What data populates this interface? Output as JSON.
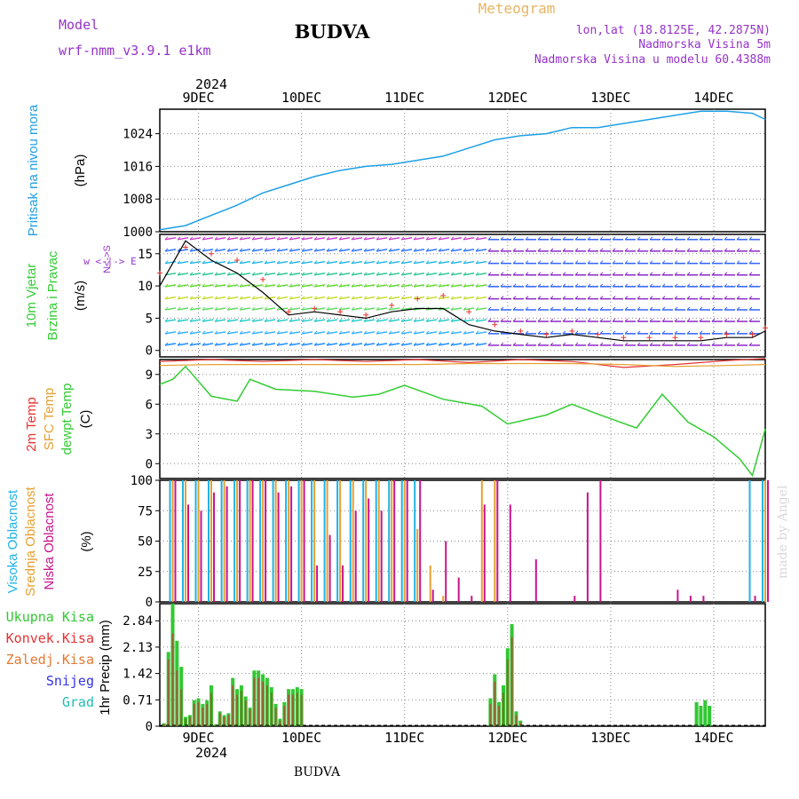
{
  "header": {
    "model_label": "Model",
    "model_name": "wrf-nmm_v3.9.1  e1km",
    "title": "BUDVA",
    "meteogram_label": "Meteogram",
    "lonlat": "lon,lat (18.8125E, 42.2875N)",
    "elevation": "Nadmorska Visina 5m",
    "model_elevation": "Nadmorska Visina u modelu 60.4388m",
    "footer_title": "BUDVA",
    "watermark": "made by Angel"
  },
  "colors": {
    "pressure": "#1ea0e6",
    "speed_line": "#000000",
    "gust_marks": "#e63232",
    "temp_2m": "#e63232",
    "temp_sfc": "#e6a030",
    "dewpoint": "#32cd32",
    "cloud_high": "#1eb4e6",
    "cloud_mid": "#e6a030",
    "cloud_low": "#c8148c",
    "precip_total": "#32c832",
    "precip_conv": "#e63232",
    "precip_frozen": "#e67832",
    "precip_snow": "#3232e6",
    "precip_graupel": "#1ebeb4",
    "wind_label": "#9632c8",
    "grid": "#888888"
  },
  "time_axis": {
    "year_label": "2024",
    "start": "2024-12-08 15:00",
    "end": "2024-12-14 12:00",
    "day_labels": [
      "9DEC",
      "10DEC",
      "11DEC",
      "12DEC",
      "13DEC",
      "14DEC"
    ],
    "day_times": [
      "2024-12-09 00:00",
      "2024-12-10 00:00",
      "2024-12-11 00:00",
      "2024-12-12 00:00",
      "2024-12-13 00:00",
      "2024-12-14 00:00"
    ]
  },
  "chart_data": [
    {
      "type": "line",
      "panel": "pressure",
      "ylabel_lines": [
        "Pritisak na nivou mora",
        "(hPa)"
      ],
      "ylim": [
        1000,
        1030
      ],
      "yticks": [
        "1000",
        "1008",
        "1016",
        "1024"
      ],
      "series": [
        {
          "name": "Pritisak na nivou mora",
          "x": [
            "2024-12-08 15:00",
            "2024-12-08 21:00",
            "2024-12-09 03:00",
            "2024-12-09 09:00",
            "2024-12-09 15:00",
            "2024-12-09 21:00",
            "2024-12-10 03:00",
            "2024-12-10 09:00",
            "2024-12-10 15:00",
            "2024-12-10 21:00",
            "2024-12-11 03:00",
            "2024-12-11 09:00",
            "2024-12-11 15:00",
            "2024-12-11 21:00",
            "2024-12-12 03:00",
            "2024-12-12 09:00",
            "2024-12-12 15:00",
            "2024-12-12 21:00",
            "2024-12-13 03:00",
            "2024-12-13 09:00",
            "2024-12-13 15:00",
            "2024-12-13 21:00",
            "2024-12-14 03:00",
            "2024-12-14 09:00",
            "2024-12-14 12:00"
          ],
          "values": [
            1000.5,
            1001.5,
            1004.0,
            1006.5,
            1009.5,
            1011.5,
            1013.5,
            1015.0,
            1016.0,
            1016.5,
            1017.5,
            1018.5,
            1020.5,
            1022.5,
            1023.5,
            1024.0,
            1025.5,
            1025.5,
            1026.5,
            1027.5,
            1028.5,
            1029.5,
            1029.5,
            1029.0,
            1027.5
          ]
        }
      ]
    },
    {
      "type": "line",
      "panel": "wind",
      "ylabel_lines": [
        "10m Vjetar",
        "Brzina i Pravac",
        "(m/s)"
      ],
      "direction_legend": "w <-|-> E",
      "direction_legend_ns": "N<->S",
      "ylim": [
        -1,
        18
      ],
      "yticks": [
        "0",
        "5",
        "10",
        "15"
      ],
      "series": [
        {
          "name": "Brzina",
          "x": [
            "2024-12-08 15:00",
            "2024-12-08 21:00",
            "2024-12-09 03:00",
            "2024-12-09 09:00",
            "2024-12-09 15:00",
            "2024-12-09 21:00",
            "2024-12-10 03:00",
            "2024-12-10 09:00",
            "2024-12-10 15:00",
            "2024-12-10 21:00",
            "2024-12-11 03:00",
            "2024-12-11 09:00",
            "2024-12-11 15:00",
            "2024-12-11 21:00",
            "2024-12-12 03:00",
            "2024-12-12 09:00",
            "2024-12-12 15:00",
            "2024-12-12 21:00",
            "2024-12-13 03:00",
            "2024-12-13 09:00",
            "2024-12-13 15:00",
            "2024-12-13 21:00",
            "2024-12-14 03:00",
            "2024-12-14 09:00",
            "2024-12-14 12:00"
          ],
          "values": [
            10,
            17,
            14,
            12,
            9,
            5.5,
            6,
            5.5,
            5,
            6,
            6.5,
            6.5,
            4,
            3,
            2.5,
            2,
            2.5,
            2,
            1.5,
            1.5,
            1.5,
            1.5,
            2,
            2,
            3
          ]
        },
        {
          "name": "Udari",
          "x": [
            "2024-12-08 15:00",
            "2024-12-08 21:00",
            "2024-12-09 03:00",
            "2024-12-09 09:00",
            "2024-12-09 15:00",
            "2024-12-09 21:00",
            "2024-12-10 03:00",
            "2024-12-10 09:00",
            "2024-12-10 15:00",
            "2024-12-10 21:00",
            "2024-12-11 03:00",
            "2024-12-11 09:00",
            "2024-12-11 15:00",
            "2024-12-11 21:00",
            "2024-12-12 03:00",
            "2024-12-12 09:00",
            "2024-12-12 15:00",
            "2024-12-12 21:00",
            "2024-12-13 03:00",
            "2024-12-13 09:00",
            "2024-12-13 15:00",
            "2024-12-13 21:00",
            "2024-12-14 03:00",
            "2024-12-14 09:00",
            "2024-12-14 12:00"
          ],
          "values": [
            12,
            16,
            15,
            14,
            11,
            6,
            6.5,
            6,
            5.5,
            7,
            8,
            8.5,
            6,
            4,
            3,
            2.5,
            3,
            2.5,
            2,
            2,
            2,
            2,
            2.5,
            2.5,
            3.5
          ]
        }
      ]
    },
    {
      "type": "line",
      "panel": "temperature",
      "ylabel_lines": [
        "2m Temp",
        "SFC Temp",
        "dewpt Temp",
        "(C)"
      ],
      "ylim": [
        -1.5,
        10.5
      ],
      "yticks": [
        "0",
        "3",
        "6",
        "9"
      ],
      "series": [
        {
          "name": "2m Temp",
          "x": [
            "2024-12-08 15:00",
            "2024-12-09 03:00",
            "2024-12-09 15:00",
            "2024-12-10 03:00",
            "2024-12-10 15:00",
            "2024-12-11 03:00",
            "2024-12-11 15:00",
            "2024-12-12 03:00",
            "2024-12-12 15:00",
            "2024-12-13 03:00",
            "2024-12-13 15:00",
            "2024-12-14 03:00",
            "2024-12-14 12:00"
          ],
          "values": [
            10.3,
            10.5,
            10.3,
            10.5,
            10.3,
            10.5,
            10.2,
            10.5,
            10.3,
            9.7,
            10.0,
            10.4,
            10.6
          ]
        },
        {
          "name": "SFC Temp",
          "x": [
            "2024-12-08 15:00",
            "2024-12-09 03:00",
            "2024-12-09 15:00",
            "2024-12-10 03:00",
            "2024-12-10 15:00",
            "2024-12-11 03:00",
            "2024-12-11 15:00",
            "2024-12-12 03:00",
            "2024-12-12 15:00",
            "2024-12-13 03:00",
            "2024-12-13 15:00",
            "2024-12-14 03:00",
            "2024-12-14 12:00"
          ],
          "values": [
            9.9,
            10.0,
            10.0,
            10.0,
            10.0,
            10.0,
            10.1,
            10.1,
            10.1,
            10.0,
            9.8,
            9.9,
            10.0
          ]
        },
        {
          "name": "dewpt Temp",
          "x": [
            "2024-12-08 15:00",
            "2024-12-08 18:00",
            "2024-12-08 21:00",
            "2024-12-09 03:00",
            "2024-12-09 09:00",
            "2024-12-09 12:00",
            "2024-12-09 18:00",
            "2024-12-10 03:00",
            "2024-12-10 12:00",
            "2024-12-10 18:00",
            "2024-12-11 00:00",
            "2024-12-11 09:00",
            "2024-12-11 18:00",
            "2024-12-12 00:00",
            "2024-12-12 09:00",
            "2024-12-12 15:00",
            "2024-12-12 21:00",
            "2024-12-13 06:00",
            "2024-12-13 12:00",
            "2024-12-13 18:00",
            "2024-12-14 00:00",
            "2024-12-14 06:00",
            "2024-12-14 09:00",
            "2024-12-14 12:00"
          ],
          "values": [
            8,
            8.5,
            9.8,
            6.8,
            6.3,
            8.5,
            7.5,
            7.3,
            6.7,
            7.0,
            7.9,
            6.5,
            5.8,
            4.0,
            4.9,
            6.0,
            5.0,
            3.6,
            7.0,
            4.2,
            2.7,
            0.5,
            -1.2,
            3.5
          ]
        }
      ]
    },
    {
      "type": "bar",
      "panel": "cloud",
      "ylabel_lines": [
        "Visoka Oblacnost",
        "Srednja Oblacnost",
        "Niska Oblacnost",
        "(%)"
      ],
      "ylim": [
        0,
        100
      ],
      "yticks": [
        "0",
        "25",
        "50",
        "75",
        "100"
      ],
      "categories": [
        "2024-12-08 18:00",
        "2024-12-08 21:00",
        "2024-12-09 00:00",
        "2024-12-09 03:00",
        "2024-12-09 06:00",
        "2024-12-09 09:00",
        "2024-12-09 12:00",
        "2024-12-09 15:00",
        "2024-12-09 18:00",
        "2024-12-09 21:00",
        "2024-12-10 00:00",
        "2024-12-10 03:00",
        "2024-12-10 06:00",
        "2024-12-10 09:00",
        "2024-12-10 12:00",
        "2024-12-10 15:00",
        "2024-12-10 18:00",
        "2024-12-10 21:00",
        "2024-12-11 00:00",
        "2024-12-11 03:00",
        "2024-12-11 06:00",
        "2024-12-11 09:00",
        "2024-12-11 12:00",
        "2024-12-11 15:00",
        "2024-12-11 18:00",
        "2024-12-11 21:00",
        "2024-12-12 00:00",
        "2024-12-12 03:00",
        "2024-12-12 06:00",
        "2024-12-12 09:00",
        "2024-12-12 12:00",
        "2024-12-12 15:00",
        "2024-12-12 18:00",
        "2024-12-12 21:00",
        "2024-12-13 00:00",
        "2024-12-13 03:00",
        "2024-12-13 06:00",
        "2024-12-13 09:00",
        "2024-12-13 12:00",
        "2024-12-13 15:00",
        "2024-12-13 18:00",
        "2024-12-13 21:00",
        "2024-12-14 00:00",
        "2024-12-14 03:00",
        "2024-12-14 06:00",
        "2024-12-14 09:00",
        "2024-12-14 12:00"
      ],
      "series": [
        {
          "name": "Visoka Oblacnost",
          "values": [
            100,
            100,
            100,
            100,
            100,
            100,
            100,
            100,
            100,
            100,
            100,
            100,
            100,
            100,
            100,
            100,
            100,
            100,
            100,
            100,
            0,
            0,
            0,
            0,
            0,
            0,
            0,
            0,
            0,
            0,
            0,
            0,
            0,
            0,
            0,
            0,
            0,
            0,
            0,
            0,
            0,
            0,
            0,
            0,
            0,
            100,
            100
          ]
        },
        {
          "name": "Srednja Oblacnost",
          "values": [
            100,
            100,
            100,
            100,
            100,
            100,
            100,
            100,
            100,
            100,
            100,
            100,
            100,
            100,
            100,
            100,
            100,
            100,
            100,
            60,
            30,
            5,
            0,
            0,
            100,
            100,
            0,
            0,
            0,
            0,
            0,
            0,
            0,
            0,
            0,
            0,
            0,
            0,
            0,
            0,
            0,
            0,
            0,
            0,
            0,
            0,
            100
          ]
        },
        {
          "name": "Niska Oblacnost",
          "values": [
            100,
            80,
            75,
            90,
            95,
            100,
            100,
            100,
            90,
            95,
            100,
            30,
            55,
            30,
            75,
            85,
            75,
            100,
            100,
            100,
            10,
            50,
            20,
            5,
            80,
            100,
            80,
            0,
            35,
            0,
            0,
            5,
            90,
            100,
            0,
            0,
            0,
            0,
            0,
            10,
            5,
            5,
            0,
            0,
            0,
            5,
            100
          ]
        }
      ]
    },
    {
      "type": "bar",
      "panel": "precip",
      "ylabel_lines": [
        "1hr Precip (mm)"
      ],
      "legend": [
        "Ukupna Kisa",
        "Konvek.Kisa",
        "Zaledj.Kisa",
        "Snijeg",
        "Grad"
      ],
      "ylim": [
        0,
        3.3
      ],
      "yticks": [
        "0",
        "0.71",
        "1.42",
        "2.13",
        "2.84"
      ],
      "categories": [
        "2024-12-08 16:00",
        "2024-12-08 17:00",
        "2024-12-08 18:00",
        "2024-12-08 19:00",
        "2024-12-08 20:00",
        "2024-12-08 21:00",
        "2024-12-08 22:00",
        "2024-12-08 23:00",
        "2024-12-09 00:00",
        "2024-12-09 01:00",
        "2024-12-09 02:00",
        "2024-12-09 03:00",
        "2024-12-09 04:00",
        "2024-12-09 05:00",
        "2024-12-09 06:00",
        "2024-12-09 07:00",
        "2024-12-09 08:00",
        "2024-12-09 09:00",
        "2024-12-09 10:00",
        "2024-12-09 11:00",
        "2024-12-09 12:00",
        "2024-12-09 13:00",
        "2024-12-09 14:00",
        "2024-12-09 15:00",
        "2024-12-09 16:00",
        "2024-12-09 17:00",
        "2024-12-09 18:00",
        "2024-12-09 19:00",
        "2024-12-09 20:00",
        "2024-12-09 21:00",
        "2024-12-09 22:00",
        "2024-12-09 23:00",
        "2024-12-10 00:00",
        "2024-12-11 20:00",
        "2024-12-11 21:00",
        "2024-12-11 22:00",
        "2024-12-11 23:00",
        "2024-12-12 00:00",
        "2024-12-12 01:00",
        "2024-12-12 02:00",
        "2024-12-12 03:00",
        "2024-12-13 20:00",
        "2024-12-13 21:00",
        "2024-12-13 22:00",
        "2024-12-13 23:00"
      ],
      "series": [
        {
          "name": "Ukupna Kisa",
          "values": [
            0.08,
            2.0,
            3.3,
            2.3,
            1.6,
            0.25,
            0.3,
            0.7,
            0.75,
            0.6,
            0.7,
            1.1,
            0.05,
            0.4,
            0.3,
            0.35,
            1.3,
            1.0,
            1.1,
            0.8,
            0.5,
            1.5,
            1.5,
            1.4,
            1.3,
            1.05,
            0.6,
            0.2,
            0.65,
            1.0,
            1.0,
            1.05,
            1.0,
            0.75,
            1.4,
            0.65,
            1.1,
            2.1,
            2.75,
            0.4,
            0.15,
            0.65,
            0.55,
            0.7,
            0.55
          ]
        },
        {
          "name": "Konvek.Kisa",
          "values": [
            0.05,
            1.8,
            2.5,
            1.5,
            1.0,
            0.2,
            0.25,
            0.6,
            0.65,
            0.5,
            0.6,
            0.9,
            0.04,
            0.35,
            0.25,
            0.3,
            1.1,
            0.85,
            0.95,
            0.7,
            0.45,
            1.3,
            1.3,
            1.2,
            1.1,
            0.9,
            0.5,
            0.15,
            0.55,
            0.85,
            0.85,
            0.9,
            0.85,
            0.6,
            1.2,
            0.55,
            0.9,
            1.8,
            2.4,
            0.3,
            0.1,
            0,
            0,
            0,
            0
          ]
        }
      ]
    }
  ]
}
